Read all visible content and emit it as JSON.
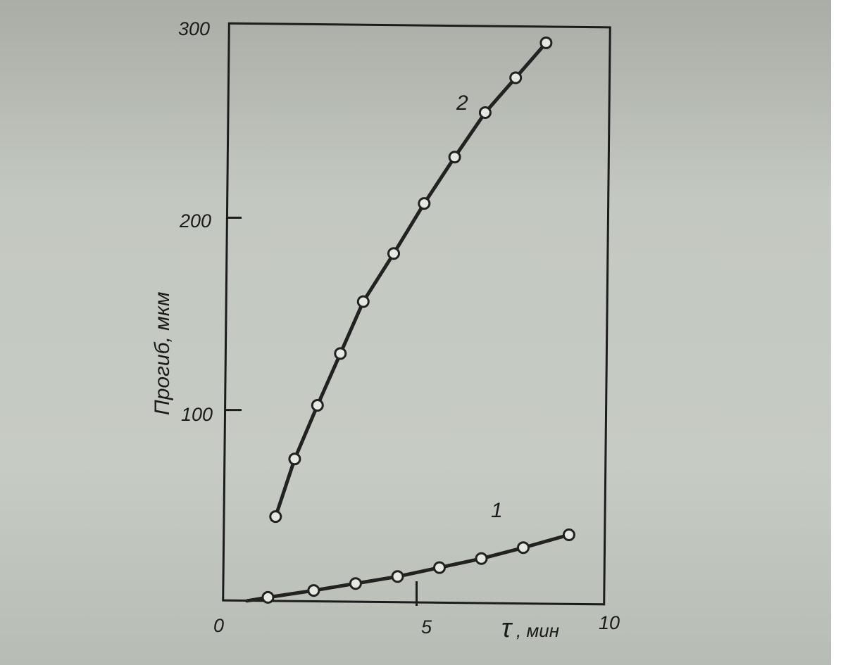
{
  "chart_data": {
    "type": "line",
    "ylabel": "Прогиб, мкм",
    "xlabel_symbol": "τ",
    "xlabel_unit": ", мин",
    "x_ticks": [
      "0",
      "5",
      "10"
    ],
    "y_ticks": [
      "100",
      "200",
      "300"
    ],
    "xlim": [
      0,
      10
    ],
    "ylim": [
      0,
      300
    ],
    "grid": false,
    "series": [
      {
        "name": "1",
        "x": [
          1.1,
          2.3,
          3.4,
          4.5,
          5.6,
          6.7,
          7.8,
          9.0
        ],
        "y": [
          3,
          7,
          11,
          15,
          20,
          25,
          31,
          38
        ]
      },
      {
        "name": "2",
        "x": [
          1.3,
          1.8,
          2.4,
          3.0,
          3.6,
          4.4,
          5.2,
          6.0,
          6.8,
          7.6,
          8.4
        ],
        "y": [
          45,
          75,
          103,
          130,
          157,
          182,
          208,
          232,
          255,
          273,
          291
        ]
      }
    ],
    "colors": {
      "line": "#222222",
      "marker_fill": "#e6e8e2"
    }
  }
}
